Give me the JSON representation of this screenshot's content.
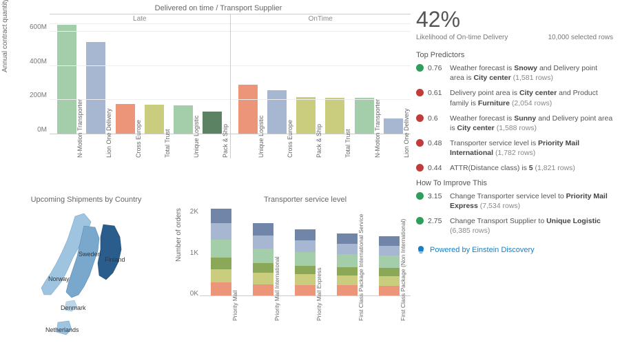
{
  "mainChart": {
    "title": "Delivered on time / Transport Supplier",
    "yAxisLabel": "Annual contract quantity",
    "yTicks": [
      "600M",
      "400M",
      "200M",
      "0M"
    ],
    "yMax": 650,
    "panels": [
      {
        "title": "Late",
        "bars": [
          {
            "label": "N-Motion Transporter",
            "value": 640,
            "color": "#a4ceaa"
          },
          {
            "label": "Lion One Delivery",
            "value": 540,
            "color": "#a8b7d1"
          },
          {
            "label": "Cross Europe",
            "value": 175,
            "color": "#ec9579"
          },
          {
            "label": "Total Trust",
            "value": 170,
            "color": "#cbcd7e"
          },
          {
            "label": "Unique Logistic",
            "value": 165,
            "color": "#a4ceaa"
          },
          {
            "label": "Pack & Ship",
            "value": 130,
            "color": "#5b8363"
          }
        ]
      },
      {
        "title": "OnTime",
        "bars": [
          {
            "label": "Unique Logistic",
            "value": 290,
            "color": "#ec9579"
          },
          {
            "label": "Cross Europe",
            "value": 255,
            "color": "#a8b7d1"
          },
          {
            "label": "Pack & Ship",
            "value": 215,
            "color": "#cbcd7e"
          },
          {
            "label": "Total Trust",
            "value": 210,
            "color": "#cbcd7e"
          },
          {
            "label": "N-Motion Transporter",
            "value": 210,
            "color": "#a4ceaa"
          },
          {
            "label": "Lion One Delivery",
            "value": 90,
            "color": "#a8b7d1"
          }
        ]
      }
    ]
  },
  "map": {
    "title": "Upcoming Shipments by Country",
    "countries": [
      {
        "name": "Sweden",
        "color": "#7aa8cd"
      },
      {
        "name": "Finland",
        "color": "#2b5d8c"
      },
      {
        "name": "Norway",
        "color": "#9fc4e0"
      },
      {
        "name": "Denmark",
        "color": "#bcd6e8"
      },
      {
        "name": "Netherlands",
        "color": "#9fc4e0"
      }
    ]
  },
  "stack": {
    "title": "Transporter service level",
    "yLabel": "Number of orders",
    "yTicks": [
      "2K",
      "1K",
      "0K"
    ],
    "yMax": 2600,
    "segColors": [
      "#ec9579",
      "#cbcd7e",
      "#8aa858",
      "#a4ceaa",
      "#a8b7d1",
      "#7085a8"
    ],
    "cols": [
      {
        "label": "Priority Mail",
        "segs": [
          380,
          380,
          350,
          520,
          470,
          430
        ]
      },
      {
        "label": "Priority Mail International",
        "segs": [
          330,
          330,
          280,
          430,
          370,
          360
        ]
      },
      {
        "label": "Priority Mail Express",
        "segs": [
          310,
          310,
          250,
          400,
          330,
          320
        ]
      },
      {
        "label": "First Class Package International Service",
        "segs": [
          300,
          290,
          240,
          380,
          300,
          300
        ]
      },
      {
        "label": "First Class Package (Non International)",
        "segs": [
          290,
          280,
          230,
          360,
          280,
          280
        ]
      }
    ]
  },
  "right": {
    "percent": "42%",
    "subLeft": "Likelihood of On-time Delivery",
    "subRight": "10,000 selected rows",
    "predictorsTitle": "Top Predictors",
    "predictors": [
      {
        "type": "up",
        "val": "0.76",
        "pre": "Weather forecast is ",
        "b1": "Snowy",
        "mid": " and Delivery point area is ",
        "b2": "City center",
        "rows": "(1,581 rows)"
      },
      {
        "type": "down",
        "val": "0.61",
        "pre": "Delivery point area is ",
        "b1": "City center",
        "mid": " and Product family is ",
        "b2": "Furniture",
        "rows": "(2,054 rows)"
      },
      {
        "type": "down",
        "val": "0.6",
        "pre": "Weather forecast is ",
        "b1": "Sunny",
        "mid": " and Delivery point area is ",
        "b2": "City center",
        "rows": "(1,588 rows)"
      },
      {
        "type": "down",
        "val": "0.48",
        "pre": "Transporter service level is ",
        "b1": "Priority Mail International",
        "mid": "",
        "b2": "",
        "rows": "(1,782 rows)"
      },
      {
        "type": "down",
        "val": "0.44",
        "pre": "ATTR(Distance class) is ",
        "b1": "5",
        "mid": "",
        "b2": "",
        "rows": "(1,821 rows)"
      }
    ],
    "improveTitle": "How To Improve This",
    "improve": [
      {
        "type": "up",
        "val": "3.15",
        "pre": "Change Transporter service level to ",
        "b1": "Priority Mail Express",
        "mid": "",
        "b2": "",
        "rows": "(7,534 rows)"
      },
      {
        "type": "up",
        "val": "2.75",
        "pre": "Change Transport Supplier to ",
        "b1": "Unique Logistic",
        "mid": "",
        "b2": "",
        "rows": "(6,385 rows)"
      }
    ],
    "powered": "Powered by Einstein Discovery",
    "dotColors": {
      "up": "#2e9e5b",
      "down": "#c23b3b"
    }
  }
}
